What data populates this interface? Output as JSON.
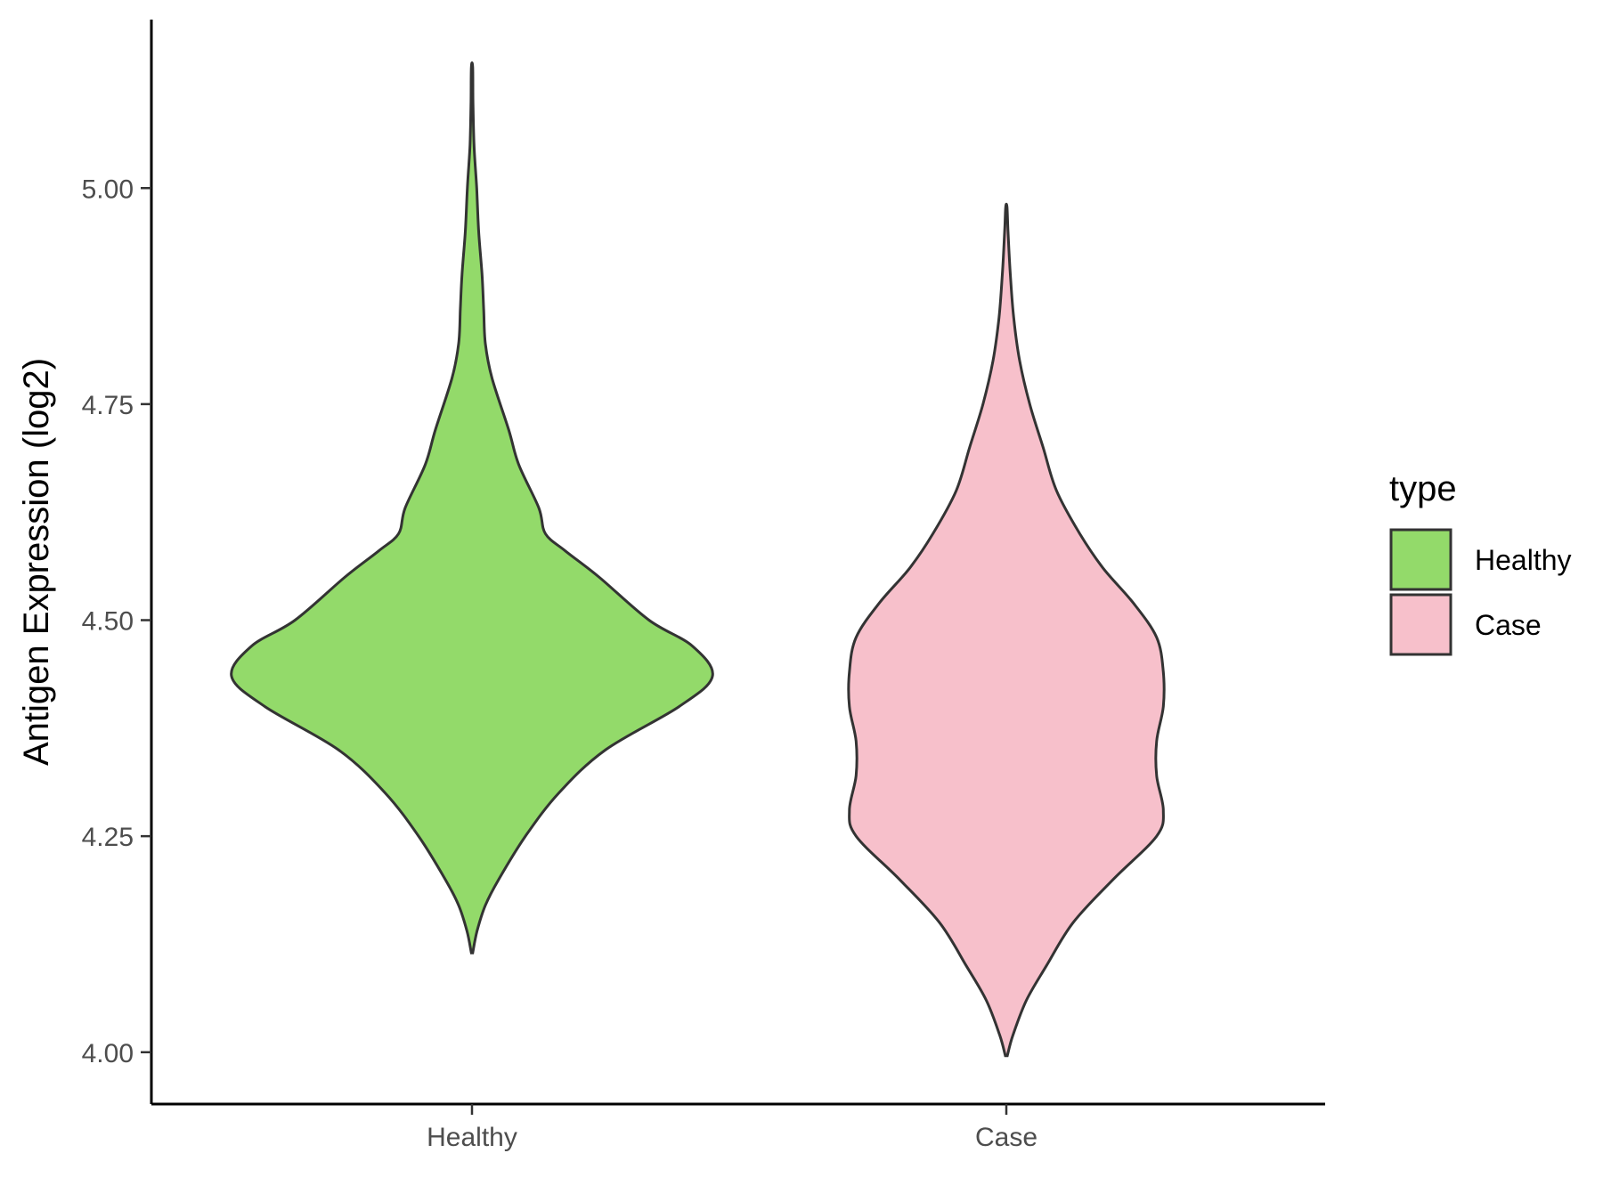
{
  "chart_data": {
    "type": "violin",
    "title": "",
    "xlabel": "",
    "ylabel": "Antigen Expression (log2)",
    "ylim": [
      3.94,
      5.195
    ],
    "yticks": [
      {
        "value": 4.0,
        "label": "4.00"
      },
      {
        "value": 4.25,
        "label": "4.25"
      },
      {
        "value": 4.5,
        "label": "4.50"
      },
      {
        "value": 4.75,
        "label": "4.75"
      },
      {
        "value": 5.0,
        "label": "5.00"
      }
    ],
    "categories": [
      "Healthy",
      "Case"
    ],
    "legend": {
      "title": "type",
      "position": "right",
      "items": [
        {
          "label": "Healthy",
          "color": "#93DA6A"
        },
        {
          "label": "Case",
          "color": "#F7C0CB"
        }
      ]
    },
    "grid": false,
    "series": [
      {
        "name": "Healthy",
        "color": "#93DA6A",
        "y_min": 4.115,
        "y_max": 5.14,
        "density": [
          [
            4.115,
            0.002
          ],
          [
            4.14,
            0.015
          ],
          [
            4.17,
            0.04
          ],
          [
            4.2,
            0.08
          ],
          [
            4.25,
            0.16
          ],
          [
            4.3,
            0.26
          ],
          [
            4.35,
            0.4
          ],
          [
            4.4,
            0.62
          ],
          [
            4.435,
            0.72
          ],
          [
            4.47,
            0.66
          ],
          [
            4.5,
            0.53
          ],
          [
            4.55,
            0.38
          ],
          [
            4.58,
            0.28
          ],
          [
            4.6,
            0.22
          ],
          [
            4.63,
            0.2
          ],
          [
            4.68,
            0.14
          ],
          [
            4.72,
            0.11
          ],
          [
            4.78,
            0.06
          ],
          [
            4.82,
            0.04
          ],
          [
            4.86,
            0.035
          ],
          [
            4.9,
            0.03
          ],
          [
            4.95,
            0.02
          ],
          [
            5.0,
            0.014
          ],
          [
            5.05,
            0.006
          ],
          [
            5.1,
            0.003
          ],
          [
            5.14,
            0.002
          ]
        ]
      },
      {
        "name": "Case",
        "color": "#F7C0CB",
        "y_min": 3.996,
        "y_max": 4.978,
        "density": [
          [
            3.996,
            0.003
          ],
          [
            4.02,
            0.02
          ],
          [
            4.06,
            0.06
          ],
          [
            4.1,
            0.12
          ],
          [
            4.15,
            0.2
          ],
          [
            4.2,
            0.32
          ],
          [
            4.25,
            0.45
          ],
          [
            4.28,
            0.47
          ],
          [
            4.32,
            0.45
          ],
          [
            4.36,
            0.45
          ],
          [
            4.4,
            0.47
          ],
          [
            4.44,
            0.47
          ],
          [
            4.48,
            0.45
          ],
          [
            4.52,
            0.38
          ],
          [
            4.56,
            0.29
          ],
          [
            4.6,
            0.22
          ],
          [
            4.65,
            0.15
          ],
          [
            4.7,
            0.11
          ],
          [
            4.75,
            0.07
          ],
          [
            4.8,
            0.04
          ],
          [
            4.85,
            0.022
          ],
          [
            4.9,
            0.012
          ],
          [
            4.95,
            0.005
          ],
          [
            4.978,
            0.002
          ]
        ]
      }
    ]
  }
}
